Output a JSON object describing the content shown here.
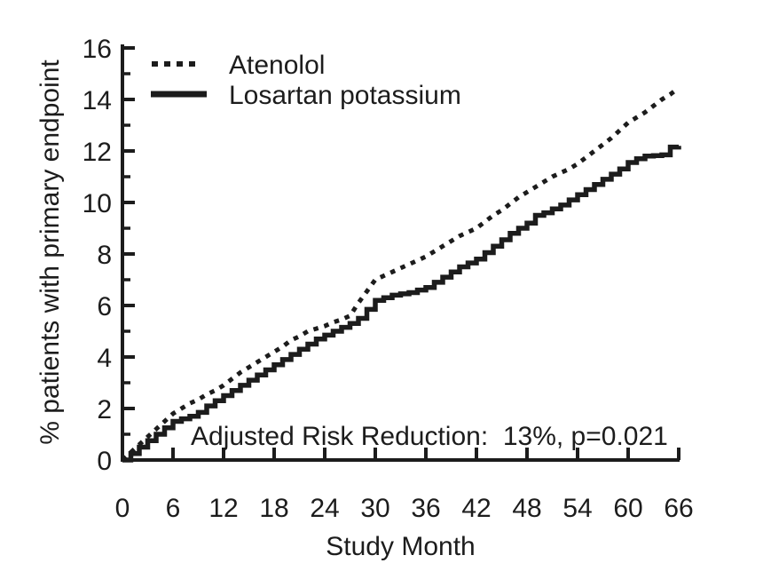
{
  "figure": {
    "background": "#ffffff",
    "ink_color": "#1c1c1c"
  },
  "chart_data": {
    "type": "line",
    "title": "",
    "xlabel": "Study Month",
    "ylabel": "% patients with primary endpoint",
    "xlim": [
      0,
      66
    ],
    "ylim": [
      0,
      16
    ],
    "x_ticks": [
      0,
      6,
      12,
      18,
      24,
      30,
      36,
      42,
      48,
      54,
      60,
      66
    ],
    "y_major_ticks": [
      0,
      2,
      4,
      6,
      8,
      10,
      12,
      14,
      16
    ],
    "y_minor_ticks": [
      1,
      3,
      5,
      7,
      9,
      11,
      13,
      15
    ],
    "grid": false,
    "legend_position": "top-left-inside",
    "annotation": "Adjusted Risk Reduction:  13%, p=0.021",
    "months": [
      0,
      1,
      2,
      3,
      4,
      5,
      6,
      7,
      8,
      9,
      10,
      11,
      12,
      13,
      14,
      15,
      16,
      17,
      18,
      19,
      20,
      21,
      22,
      23,
      24,
      25,
      26,
      27,
      28,
      29,
      30,
      31,
      32,
      33,
      34,
      35,
      36,
      37,
      38,
      39,
      40,
      41,
      42,
      43,
      44,
      45,
      46,
      47,
      48,
      49,
      50,
      51,
      52,
      53,
      54,
      55,
      56,
      57,
      58,
      59,
      60,
      61,
      62,
      63,
      64,
      65,
      66
    ],
    "series": [
      {
        "name": "Atenolol",
        "style": "dotted",
        "values": [
          0,
          0.3,
          0.6,
          0.9,
          1.2,
          1.5,
          1.8,
          2.0,
          2.2,
          2.35,
          2.55,
          2.7,
          2.9,
          3.15,
          3.4,
          3.6,
          3.8,
          4.0,
          4.2,
          4.4,
          4.65,
          4.8,
          5.0,
          5.1,
          5.2,
          5.35,
          5.45,
          5.6,
          6.1,
          6.55,
          7.0,
          7.15,
          7.3,
          7.45,
          7.6,
          7.75,
          7.9,
          8.1,
          8.3,
          8.5,
          8.7,
          8.85,
          9.0,
          9.25,
          9.5,
          9.7,
          9.95,
          10.2,
          10.4,
          10.6,
          10.8,
          11.0,
          11.15,
          11.3,
          11.5,
          11.75,
          12.0,
          12.25,
          12.5,
          12.8,
          13.1,
          13.3,
          13.5,
          13.75,
          14.0,
          14.2,
          14.45
        ]
      },
      {
        "name": "Losartan potassium",
        "style": "solid",
        "values": [
          0,
          0.25,
          0.5,
          0.75,
          1.0,
          1.25,
          1.5,
          1.6,
          1.7,
          1.85,
          2.1,
          2.3,
          2.5,
          2.7,
          2.9,
          3.1,
          3.3,
          3.5,
          3.7,
          3.9,
          4.1,
          4.3,
          4.5,
          4.7,
          4.85,
          5.0,
          5.15,
          5.3,
          5.5,
          5.85,
          6.2,
          6.3,
          6.4,
          6.45,
          6.5,
          6.6,
          6.7,
          6.9,
          7.1,
          7.3,
          7.5,
          7.65,
          7.8,
          8.05,
          8.3,
          8.55,
          8.8,
          9.0,
          9.2,
          9.5,
          9.6,
          9.75,
          9.9,
          10.1,
          10.3,
          10.5,
          10.7,
          10.9,
          11.1,
          11.3,
          11.55,
          11.7,
          11.8,
          11.82,
          11.85,
          12.15,
          12.2
        ]
      }
    ]
  }
}
